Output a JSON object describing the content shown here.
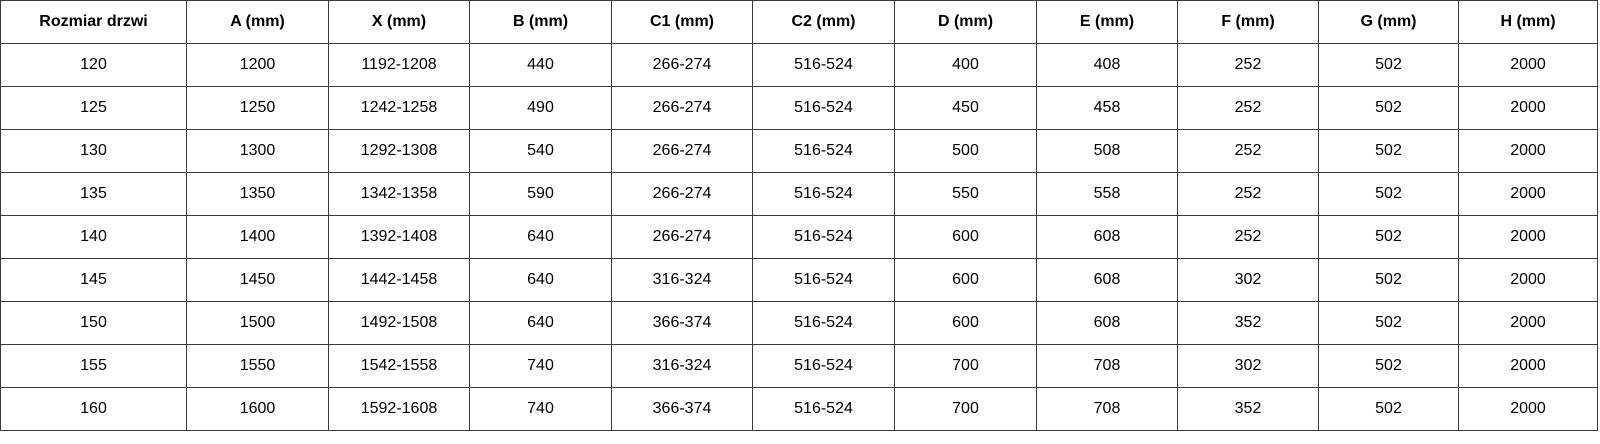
{
  "table": {
    "headers": [
      "Rozmiar drzwi",
      "A (mm)",
      "X (mm)",
      "B (mm)",
      "C1 (mm)",
      "C2 (mm)",
      "D (mm)",
      "E (mm)",
      "F (mm)",
      "G (mm)",
      "H (mm)"
    ],
    "rows": [
      [
        "120",
        "1200",
        "1192-1208",
        "440",
        "266-274",
        "516-524",
        "400",
        "408",
        "252",
        "502",
        "2000"
      ],
      [
        "125",
        "1250",
        "1242-1258",
        "490",
        "266-274",
        "516-524",
        "450",
        "458",
        "252",
        "502",
        "2000"
      ],
      [
        "130",
        "1300",
        "1292-1308",
        "540",
        "266-274",
        "516-524",
        "500",
        "508",
        "252",
        "502",
        "2000"
      ],
      [
        "135",
        "1350",
        "1342-1358",
        "590",
        "266-274",
        "516-524",
        "550",
        "558",
        "252",
        "502",
        "2000"
      ],
      [
        "140",
        "1400",
        "1392-1408",
        "640",
        "266-274",
        "516-524",
        "600",
        "608",
        "252",
        "502",
        "2000"
      ],
      [
        "145",
        "1450",
        "1442-1458",
        "640",
        "316-324",
        "516-524",
        "600",
        "608",
        "302",
        "502",
        "2000"
      ],
      [
        "150",
        "1500",
        "1492-1508",
        "640",
        "366-374",
        "516-524",
        "600",
        "608",
        "352",
        "502",
        "2000"
      ],
      [
        "155",
        "1550",
        "1542-1558",
        "740",
        "316-324",
        "516-524",
        "700",
        "708",
        "302",
        "502",
        "2000"
      ],
      [
        "160",
        "1600",
        "1592-1608",
        "740",
        "366-374",
        "516-524",
        "700",
        "708",
        "352",
        "502",
        "2000"
      ]
    ]
  }
}
